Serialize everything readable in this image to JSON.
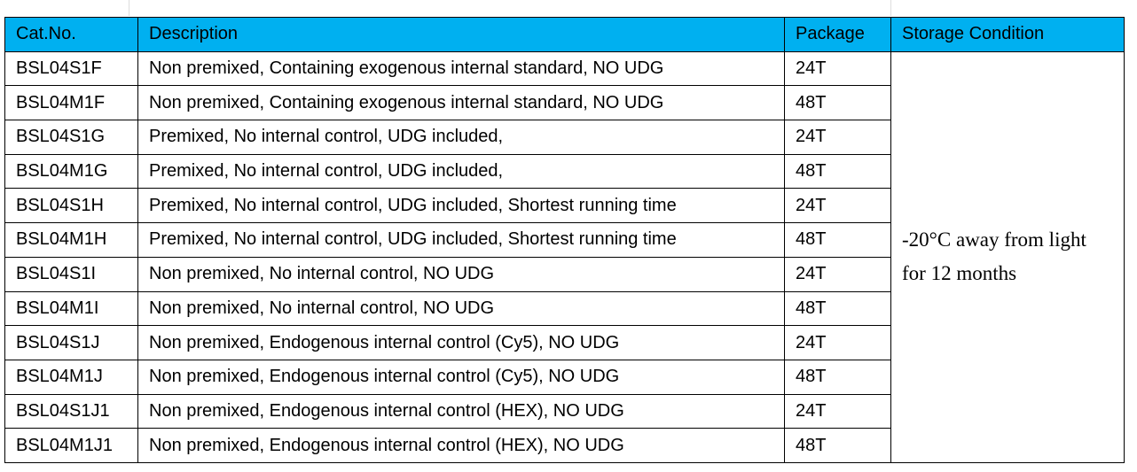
{
  "table": {
    "header": [
      "Cat.No.",
      "Description",
      "Package",
      "Storage Condition"
    ],
    "rows": [
      [
        "BSL04S1F",
        "Non premixed, Containing exogenous internal standard, NO UDG",
        "24T"
      ],
      [
        "BSL04M1F",
        "Non premixed, Containing exogenous internal standard, NO UDG",
        "48T"
      ],
      [
        "BSL04S1G",
        "Premixed, No internal control, UDG included,",
        "24T"
      ],
      [
        "BSL04M1G",
        "Premixed, No internal control, UDG included,",
        "48T"
      ],
      [
        "BSL04S1H",
        "Premixed, No internal control, UDG included, Shortest running time",
        "24T"
      ],
      [
        "BSL04M1H",
        "Premixed, No internal control, UDG included, Shortest running time",
        "48T"
      ],
      [
        "BSL04S1I",
        "Non premixed, No internal control, NO UDG",
        "24T"
      ],
      [
        "BSL04M1I",
        "Non premixed, No internal control, NO UDG",
        "48T"
      ],
      [
        "BSL04S1J",
        "Non premixed, Endogenous internal control (Cy5), NO UDG",
        "24T"
      ],
      [
        "BSL04M1J",
        "Non premixed, Endogenous internal control (Cy5), NO UDG",
        "48T"
      ],
      [
        "BSL04S1J1",
        "Non premixed, Endogenous internal control (HEX), NO UDG",
        "24T"
      ],
      [
        "BSL04M1J1",
        "Non premixed, Endogenous internal control (HEX), NO UDG",
        "48T"
      ]
    ],
    "storage": "-20°C away from light for 12 months"
  }
}
